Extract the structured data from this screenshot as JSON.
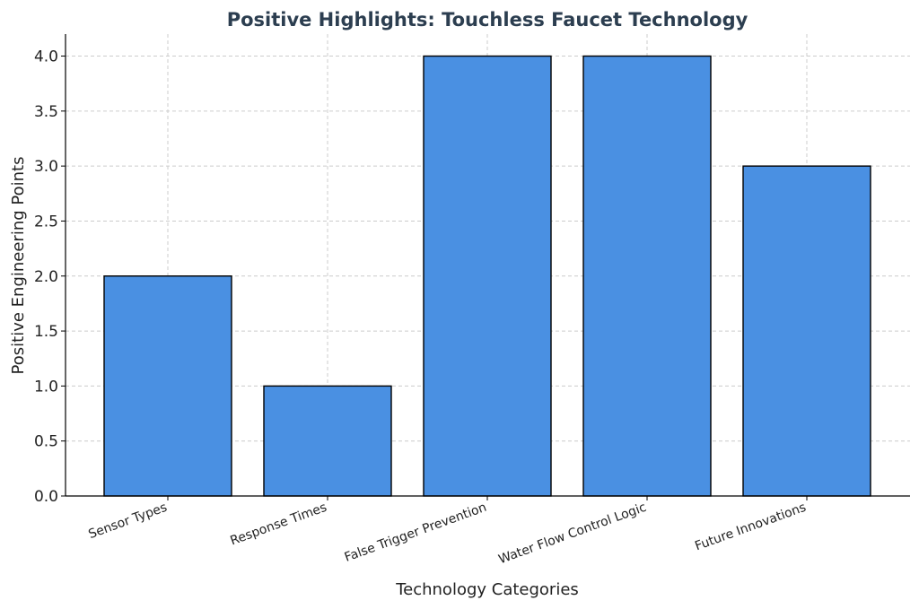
{
  "chart_data": {
    "type": "bar",
    "title": "Positive Highlights: Touchless Faucet Technology",
    "xlabel": "Technology Categories",
    "ylabel": "Positive Engineering Points",
    "categories": [
      "Sensor Types",
      "Response Times",
      "False Trigger Prevention",
      "Water Flow Control Logic",
      "Future Innovations"
    ],
    "values": [
      2,
      1,
      4,
      4,
      3
    ],
    "ylim": [
      0,
      4.2
    ],
    "yticks": [
      "0.0",
      "0.5",
      "1.0",
      "1.5",
      "2.0",
      "2.5",
      "3.0",
      "3.5",
      "4.0"
    ],
    "grid": true,
    "bar_color": "#4a90e2",
    "edge_color": "#000000"
  }
}
